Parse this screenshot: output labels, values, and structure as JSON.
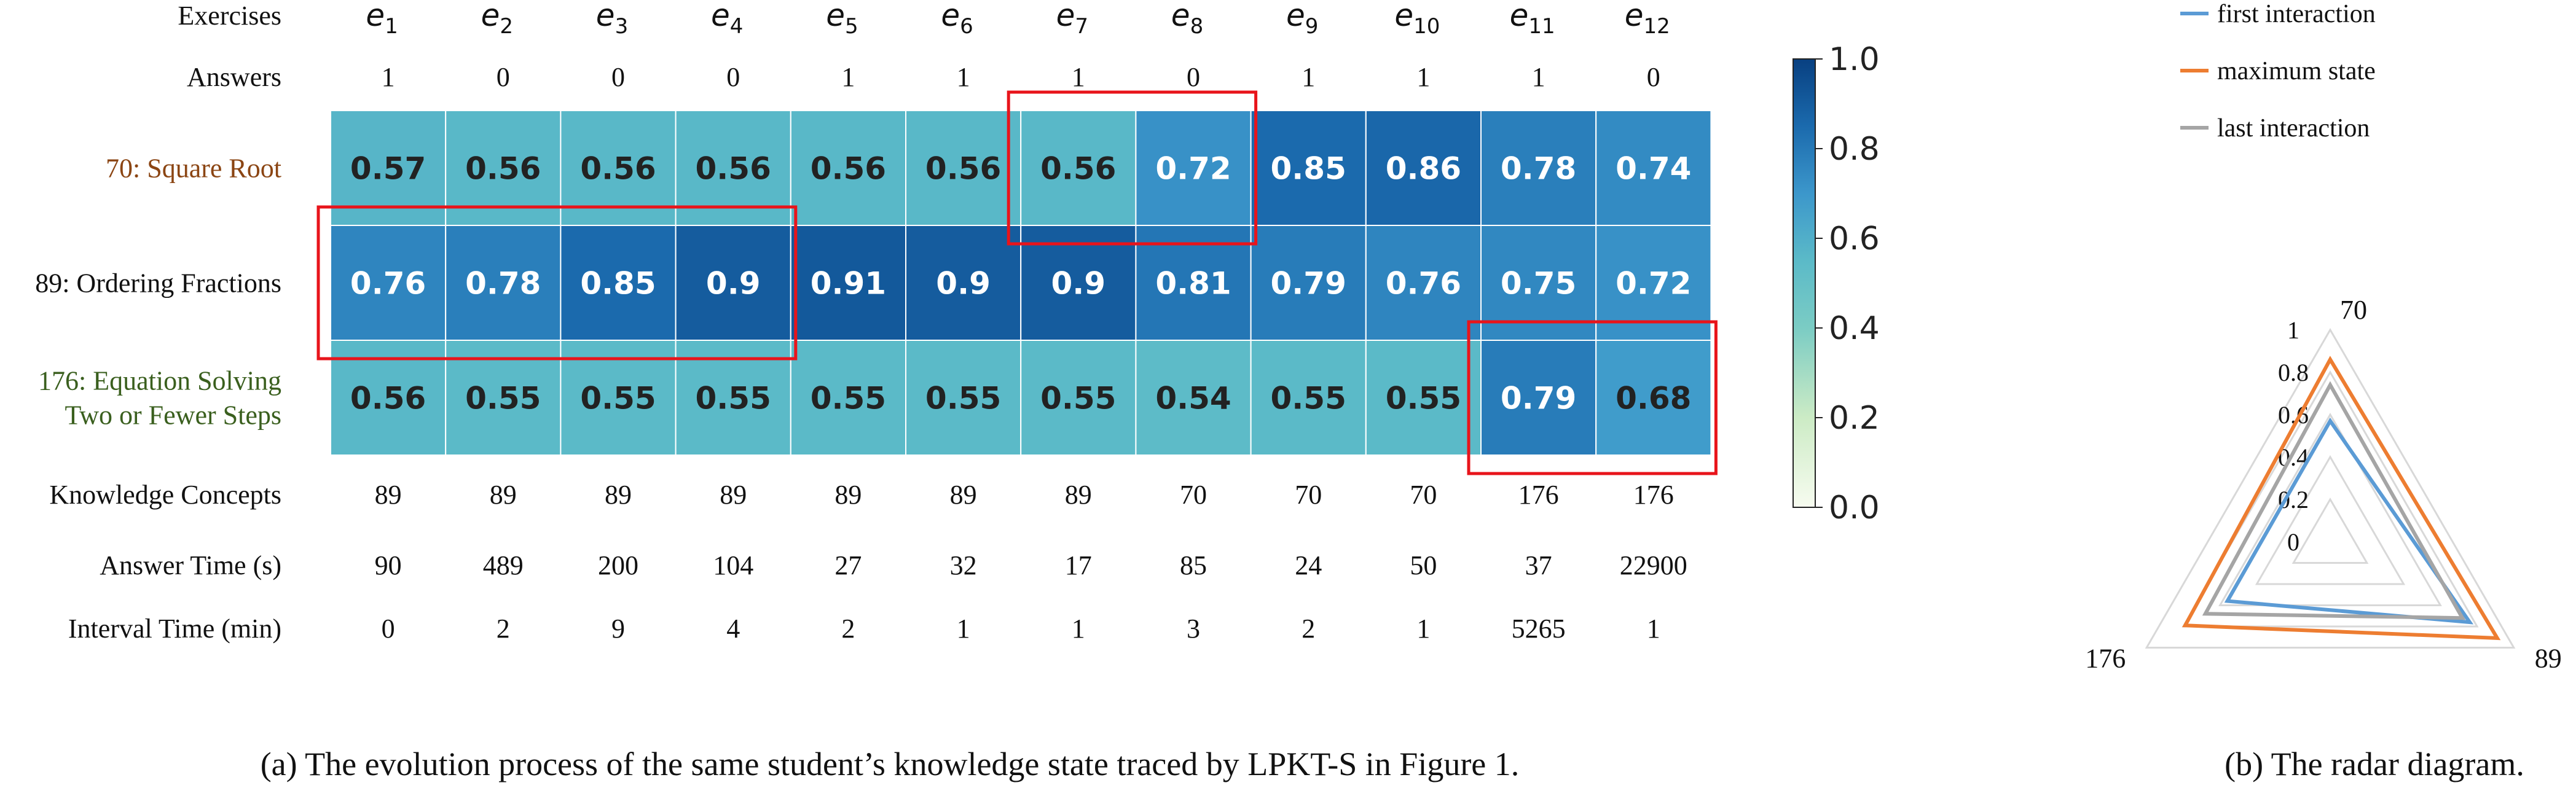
{
  "chart_data": [
    {
      "type": "heatmap",
      "title": "",
      "columns_header": "Exercises",
      "columns": [
        {
          "base": "e",
          "sub": "1"
        },
        {
          "base": "e",
          "sub": "2"
        },
        {
          "base": "e",
          "sub": "3"
        },
        {
          "base": "e",
          "sub": "4"
        },
        {
          "base": "e",
          "sub": "5"
        },
        {
          "base": "e",
          "sub": "6"
        },
        {
          "base": "e",
          "sub": "7"
        },
        {
          "base": "e",
          "sub": "8"
        },
        {
          "base": "e",
          "sub": "9"
        },
        {
          "base": "e",
          "sub": "10"
        },
        {
          "base": "e",
          "sub": "11"
        },
        {
          "base": "e",
          "sub": "12"
        }
      ],
      "answers_label": "Answers",
      "answers": [
        "1",
        "0",
        "0",
        "0",
        "1",
        "1",
        "1",
        "0",
        "1",
        "1",
        "1",
        "0"
      ],
      "rows": [
        {
          "label": [
            "70: Square Root"
          ],
          "color": "#8b4513"
        },
        {
          "label": [
            "89: Ordering Fractions"
          ],
          "color": "#111111"
        },
        {
          "label": [
            "176: Equation Solving",
            "Two or Fewer Steps"
          ],
          "color": "#3a5f1e"
        }
      ],
      "values": [
        [
          0.57,
          0.56,
          0.56,
          0.56,
          0.56,
          0.56,
          0.56,
          0.72,
          0.85,
          0.86,
          0.78,
          0.74
        ],
        [
          0.76,
          0.78,
          0.85,
          0.9,
          0.91,
          0.9,
          0.9,
          0.81,
          0.79,
          0.76,
          0.75,
          0.72
        ],
        [
          0.56,
          0.55,
          0.55,
          0.55,
          0.55,
          0.55,
          0.55,
          0.54,
          0.55,
          0.55,
          0.79,
          0.68
        ]
      ],
      "value_labels": [
        [
          "0.57",
          "0.56",
          "0.56",
          "0.56",
          "0.56",
          "0.56",
          "0.56",
          "0.72",
          "0.85",
          "0.86",
          "0.78",
          "0.74"
        ],
        [
          "0.76",
          "0.78",
          "0.85",
          "0.9",
          "0.91",
          "0.9",
          "0.9",
          "0.81",
          "0.79",
          "0.76",
          "0.75",
          "0.72"
        ],
        [
          "0.56",
          "0.55",
          "0.55",
          "0.55",
          "0.55",
          "0.55",
          "0.55",
          "0.54",
          "0.55",
          "0.55",
          "0.79",
          "0.68"
        ]
      ],
      "colormap": "GnBu",
      "colorbar": {
        "range": [
          0.0,
          1.0
        ],
        "ticks": [
          "0.0",
          "0.2",
          "0.4",
          "0.6",
          "0.8",
          "1.0"
        ]
      },
      "highlight_boxes": [
        {
          "rows": [
            1,
            1
          ],
          "cols": [
            1,
            4
          ]
        },
        {
          "rows": [
            0,
            0
          ],
          "cols": [
            7,
            8
          ]
        },
        {
          "rows": [
            2,
            2
          ],
          "cols": [
            11,
            12
          ]
        }
      ],
      "footer_rows": [
        {
          "label": "Knowledge Concepts",
          "values": [
            "89",
            "89",
            "89",
            "89",
            "89",
            "89",
            "89",
            "70",
            "70",
            "70",
            "176",
            "176"
          ]
        },
        {
          "label": "Answer Time (s)",
          "values": [
            "90",
            "489",
            "200",
            "104",
            "27",
            "32",
            "17",
            "85",
            "24",
            "50",
            "37",
            "22900"
          ]
        },
        {
          "label": "Interval Time (min)",
          "values": [
            "0",
            "2",
            "9",
            "4",
            "2",
            "1",
            "1",
            "3",
            "2",
            "1",
            "5265",
            "1"
          ]
        }
      ],
      "caption": "(a)  The evolution process of the same student’s knowledge state traced by LPKT-S in Figure 1."
    },
    {
      "type": "radar",
      "axes": [
        "70",
        "89",
        "176"
      ],
      "rlim": [
        0,
        1
      ],
      "radial_ticks": [
        "0",
        "0.2",
        "0.4",
        "0.6",
        "0.8",
        "1"
      ],
      "series": [
        {
          "name": "first interaction",
          "color": "#5b9bd5",
          "values": [
            0.57,
            0.76,
            0.56
          ]
        },
        {
          "name": "maximum state",
          "color": "#ed7d31",
          "values": [
            0.86,
            0.91,
            0.79
          ]
        },
        {
          "name": "last interaction",
          "color": "#a5a5a5",
          "values": [
            0.74,
            0.72,
            0.68
          ]
        }
      ],
      "legend_position": "top",
      "caption": "(b)  The radar diagram."
    }
  ]
}
